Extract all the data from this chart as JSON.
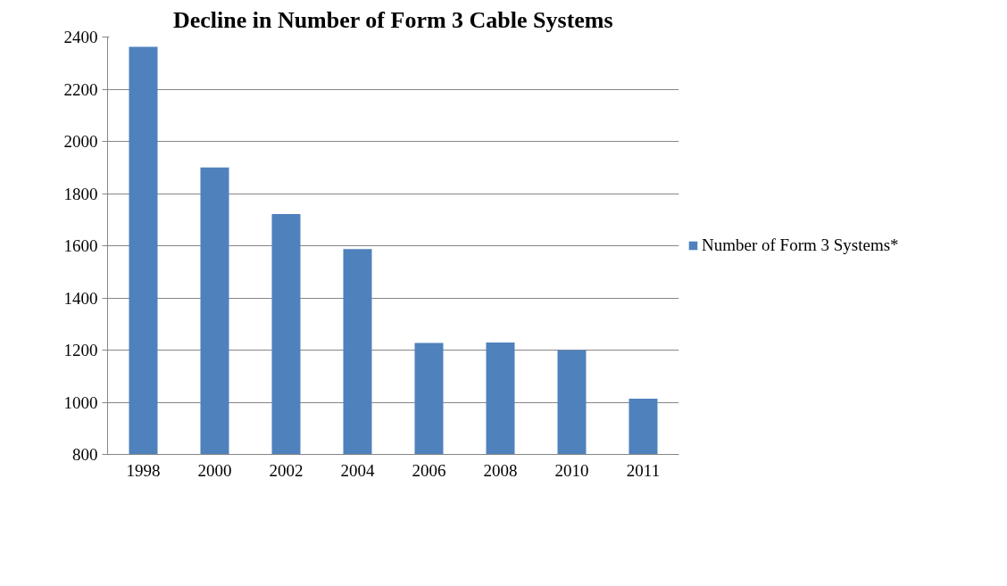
{
  "chart_data": {
    "type": "bar",
    "title": "Decline in Number of Form 3 Cable Systems",
    "categories": [
      "1998",
      "2000",
      "2002",
      "2004",
      "2006",
      "2008",
      "2010",
      "2011"
    ],
    "series": [
      {
        "name": "Number of Form 3 Systems*",
        "color": "#4f81bd",
        "values": [
          2362,
          1900,
          1721,
          1587,
          1227,
          1229,
          1200,
          1014
        ]
      }
    ],
    "ylim": [
      800,
      2400
    ],
    "yticks": [
      800,
      1000,
      1200,
      1400,
      1600,
      1800,
      2000,
      2200,
      2400
    ],
    "grid": "y",
    "legend": "right"
  }
}
